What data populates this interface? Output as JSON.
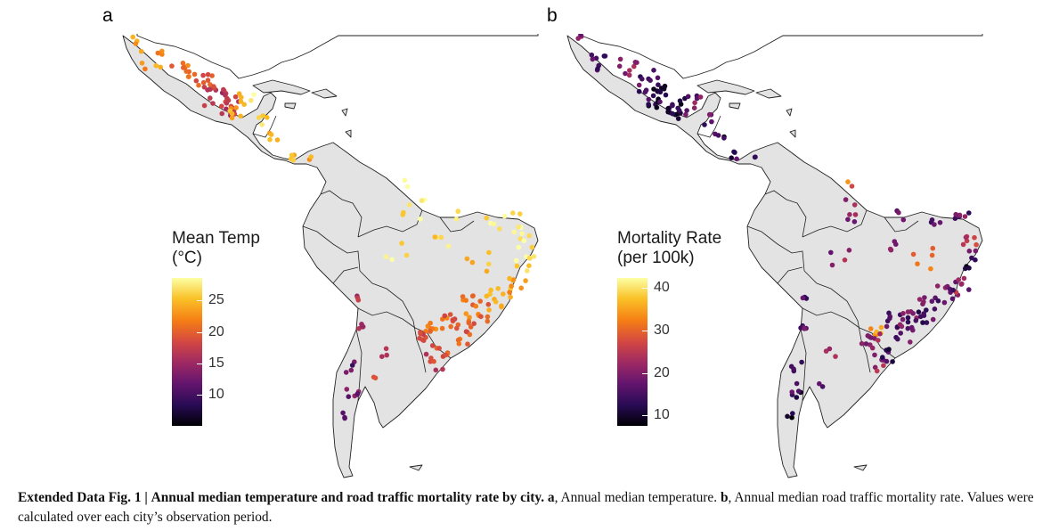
{
  "panels": [
    {
      "letter": "a",
      "legend_title_line1": "Mean Temp",
      "legend_title_line2": "(°C)",
      "ticks": [
        "25",
        "20",
        "15",
        "10"
      ],
      "tick_values": [
        25,
        20,
        15,
        10
      ],
      "range": [
        6,
        28
      ]
    },
    {
      "letter": "b",
      "legend_title_line1": "Mortality Rate",
      "legend_title_line2": "(per 100k)",
      "ticks": [
        "40",
        "30",
        "20",
        "10"
      ],
      "tick_values": [
        40,
        30,
        20,
        10
      ],
      "range": [
        8,
        43
      ]
    }
  ],
  "colors": {
    "land": "#e3e3e3",
    "border": "#222222",
    "background": "#ffffff",
    "scale": "inferno"
  },
  "caption": {
    "label": "Extended Data Fig. 1 |",
    "title": "Annual median temperature and road traffic mortality rate by city.",
    "a_label": "a",
    "a_text": ", Annual median temperature.",
    "b_label": "b",
    "b_text": ", Annual median road traffic mortality rate. Values were calculated over each city’s observation period."
  }
}
